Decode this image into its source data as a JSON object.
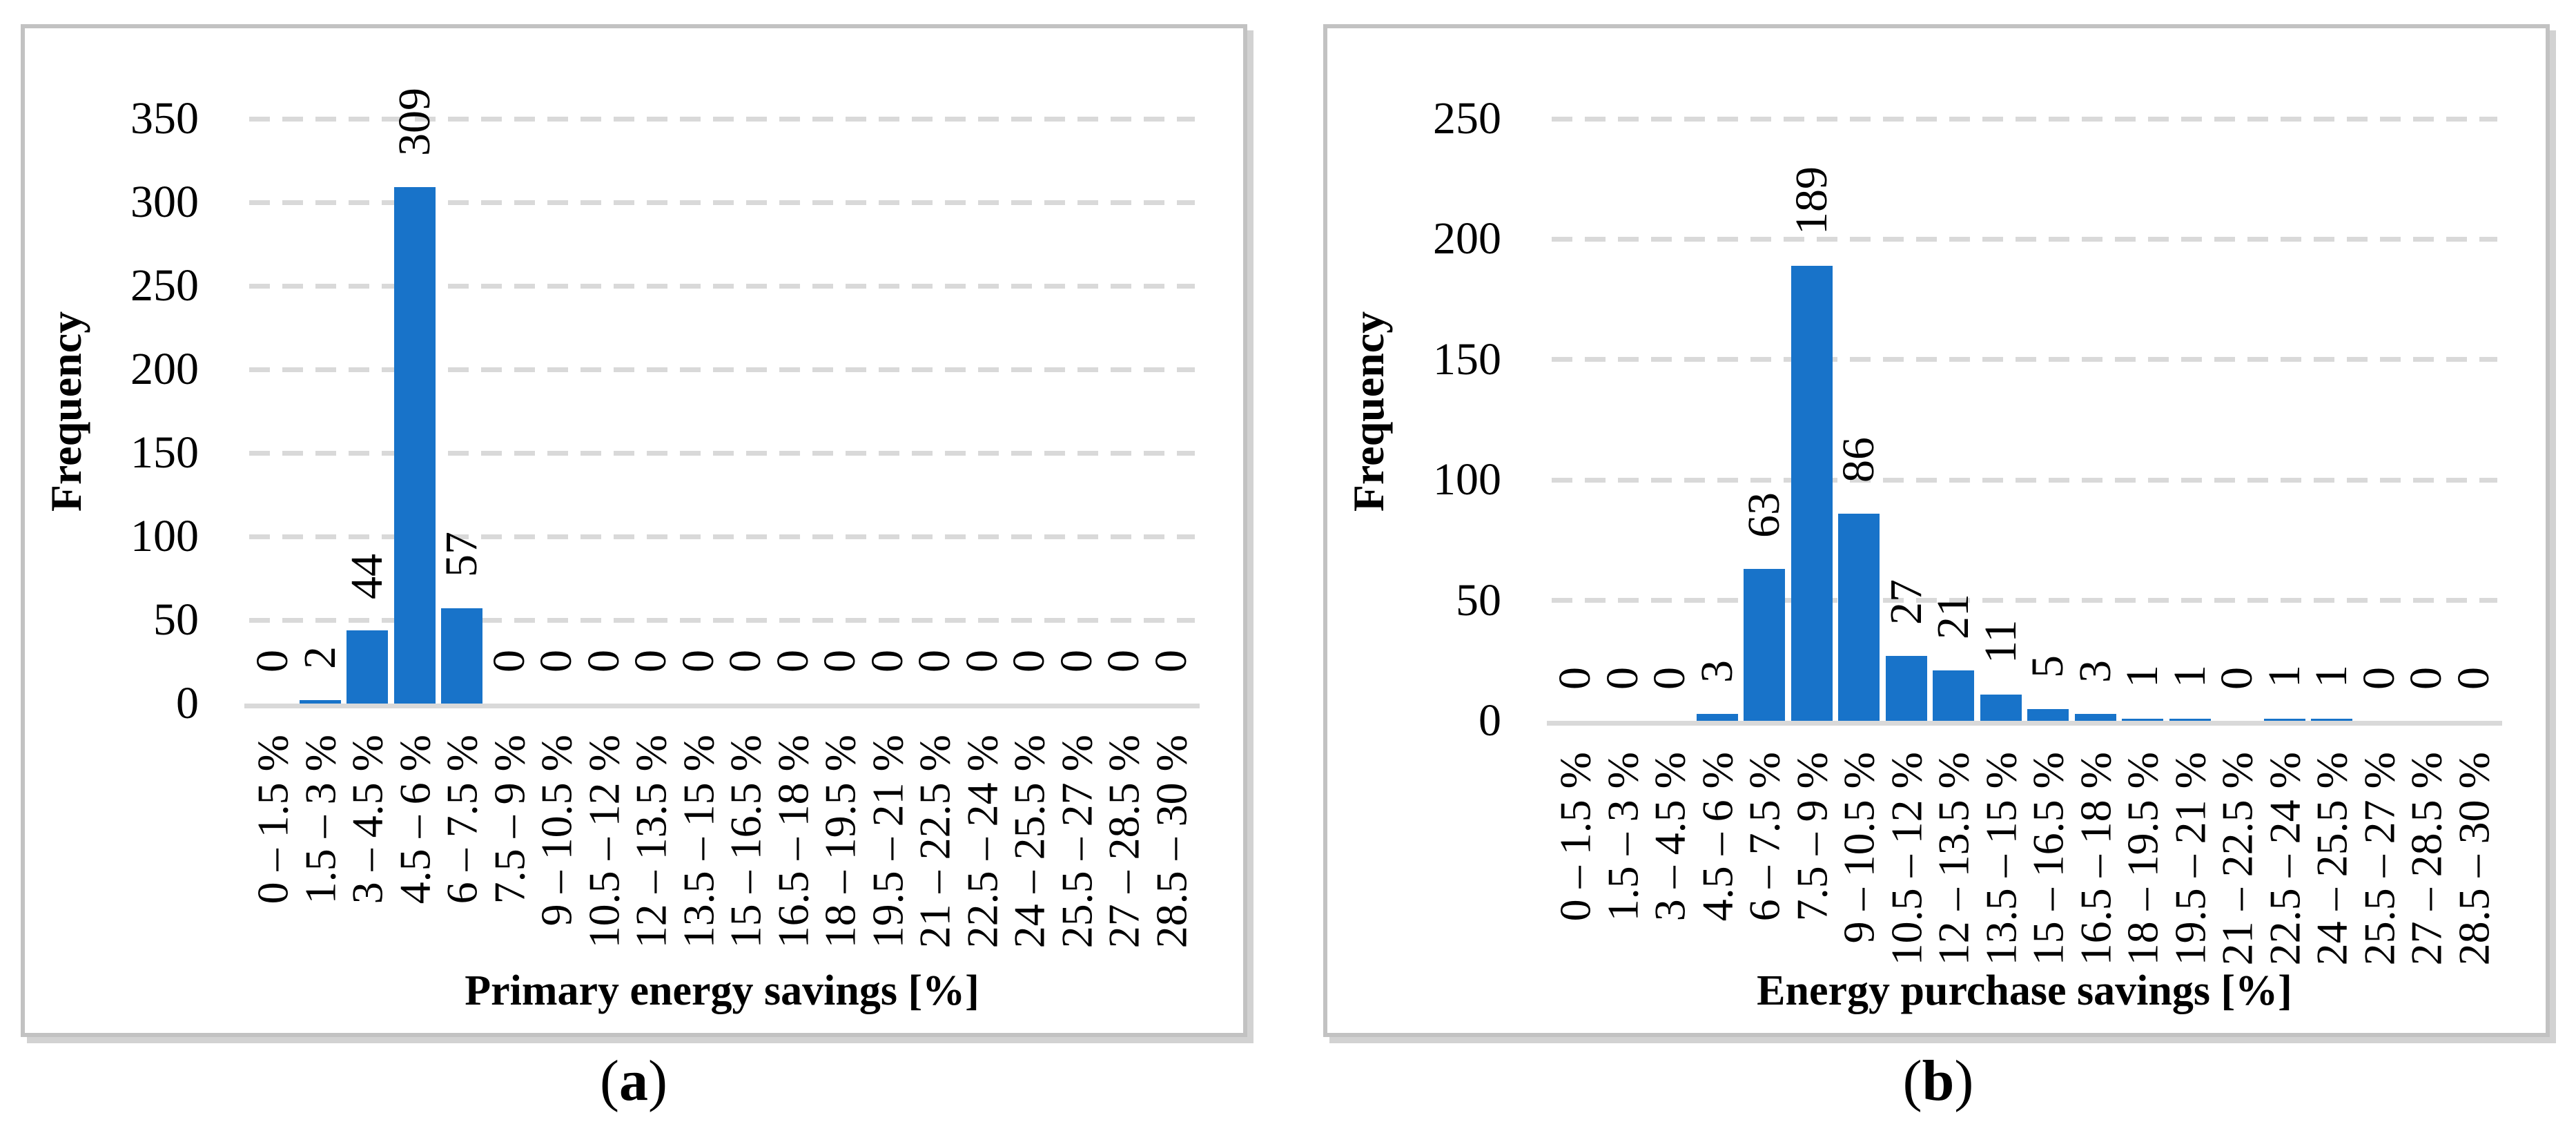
{
  "colors": {
    "bar": "#1873C9",
    "grid": "#D9D9D9",
    "axis": "#D9D9D9",
    "panel_border": "#C2C2C2",
    "shadow": "#D2D2D2",
    "text": "#000000"
  },
  "figure": {
    "panels": [
      {
        "caption_open": "(",
        "caption_letter": "a",
        "caption_close": ")"
      },
      {
        "caption_open": "(",
        "caption_letter": "b",
        "caption_close": ")"
      }
    ]
  },
  "chart_data": [
    {
      "type": "bar",
      "title": "(a)",
      "xlabel": "Primary energy savings [%]",
      "ylabel": "Frequency",
      "ylim": [
        0,
        350
      ],
      "ystep": 50,
      "grid": "dashed horizontal gridlines",
      "legend_position": "none",
      "bar_color": "#1873C9",
      "categories": [
        "0 – 1.5 %",
        "1.5 – 3 %",
        "3 – 4.5 %",
        "4.5 – 6 %",
        "6 – 7.5 %",
        "7.5 – 9 %",
        "9 – 10.5 %",
        "10.5 – 12 %",
        "12 – 13.5 %",
        "13.5 – 15 %",
        "15 – 16.5 %",
        "16.5 – 18 %",
        "18 – 19.5 %",
        "19.5 – 21 %",
        "21 – 22.5 %",
        "22.5 – 24 %",
        "24 – 25.5 %",
        "25.5 – 27 %",
        "27 – 28.5 %",
        "28.5 – 30 %"
      ],
      "values": [
        0,
        2,
        44,
        309,
        57,
        0,
        0,
        0,
        0,
        0,
        0,
        0,
        0,
        0,
        0,
        0,
        0,
        0,
        0,
        0
      ]
    },
    {
      "type": "bar",
      "title": "(b)",
      "xlabel": "Energy purchase savings [%]",
      "ylabel": "Frequency",
      "ylim": [
        0,
        250
      ],
      "ystep": 50,
      "grid": "dashed horizontal gridlines",
      "legend_position": "none",
      "bar_color": "#1873C9",
      "categories": [
        "0 – 1.5 %",
        "1.5 – 3 %",
        "3 – 4.5 %",
        "4.5 – 6 %",
        "6 – 7.5 %",
        "7.5 – 9 %",
        "9 – 10.5 %",
        "10.5 – 12 %",
        "12 – 13.5 %",
        "13.5 – 15 %",
        "15 – 16.5 %",
        "16.5 – 18 %",
        "18 – 19.5 %",
        "19.5 – 21 %",
        "21 – 22.5 %",
        "22.5 – 24 %",
        "24 – 25.5 %",
        "25.5 – 27 %",
        "27 – 28.5 %",
        "28.5 – 30 %"
      ],
      "values": [
        0,
        0,
        0,
        3,
        63,
        189,
        86,
        27,
        21,
        11,
        5,
        3,
        1,
        1,
        0,
        1,
        1,
        0,
        0,
        0
      ]
    }
  ]
}
